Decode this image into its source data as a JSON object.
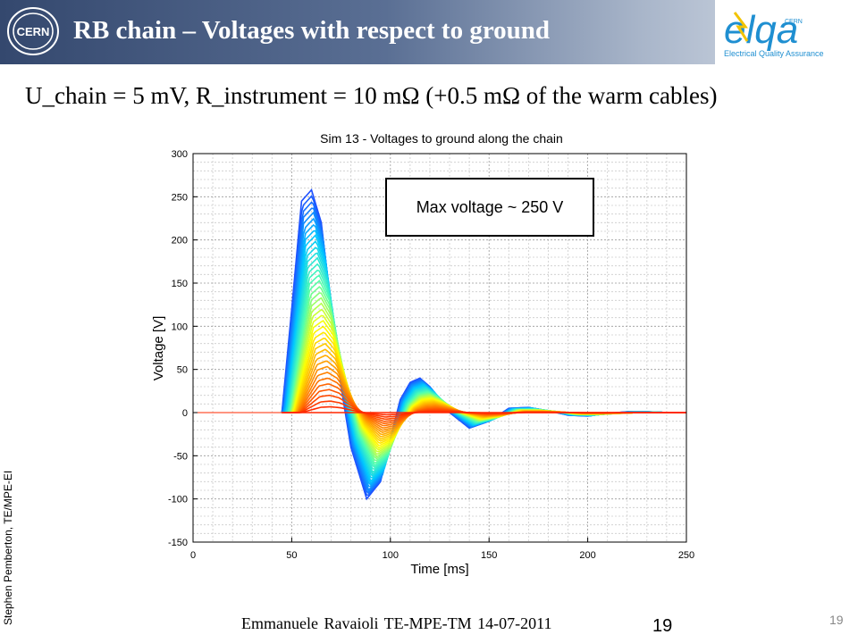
{
  "header": {
    "title": "RB chain – Voltages with respect to ground",
    "left_logo_text": "CERN",
    "right_logo_text": "elqa",
    "right_logo_caption": "Electrical Quality Assurance",
    "right_logo_small": "CERN"
  },
  "subtitle": "U_chain = 5 mV, R_instrument = 10 mΩ (+0.5 mΩ of the warm cables)",
  "chart_data": {
    "type": "line",
    "title": "Sim 13 - Voltages to ground along the chain",
    "xlabel": "Time [ms]",
    "ylabel": "Voltage [V]",
    "xlim": [
      0,
      250
    ],
    "ylim": [
      -150,
      300
    ],
    "xticks": [
      "0",
      "50",
      "100",
      "150",
      "200",
      "250"
    ],
    "yticks": [
      "-150",
      "-100",
      "-50",
      "0",
      "50",
      "100",
      "150",
      "200",
      "250",
      "300"
    ],
    "grid": true,
    "annotation": "Max voltage ~ 250 V",
    "colormap": [
      "#1e50ff",
      "#00c8ff",
      "#50ffb0",
      "#ffff00",
      "#ff8c00",
      "#ff1e00"
    ],
    "series": [
      {
        "x": [
          45,
          50,
          55,
          60,
          65,
          70,
          75,
          80,
          88,
          95,
          100,
          105,
          110,
          115,
          120,
          125,
          130,
          140,
          150,
          160,
          170,
          180,
          190,
          200,
          210,
          220,
          230,
          240,
          250
        ],
        "y": [
          0,
          120,
          245,
          258,
          220,
          120,
          30,
          -40,
          -100,
          -80,
          -30,
          15,
          35,
          40,
          30,
          15,
          0,
          -18,
          -10,
          5,
          6,
          2,
          -3,
          -4,
          -1,
          1,
          1,
          0,
          0
        ]
      },
      {
        "x": [
          45,
          50,
          55,
          60,
          65,
          70,
          75,
          80,
          88,
          95,
          100,
          105,
          110,
          115,
          120,
          125,
          130,
          140,
          150,
          160,
          170,
          180,
          190,
          200,
          210,
          220,
          230,
          240,
          250
        ],
        "y": [
          0,
          60,
          120,
          130,
          110,
          60,
          15,
          -20,
          -50,
          -40,
          -15,
          8,
          18,
          20,
          15,
          8,
          0,
          -9,
          -5,
          3,
          3,
          1,
          -2,
          -2,
          -1,
          0,
          0,
          0,
          0
        ]
      },
      {
        "x": [
          45,
          50,
          55,
          60,
          65,
          70,
          75,
          80,
          88,
          95,
          100,
          105,
          110,
          115,
          120,
          125,
          130,
          140,
          150,
          160,
          170,
          180,
          190,
          200,
          210,
          220,
          230,
          240,
          250
        ],
        "y": [
          0,
          0,
          0,
          0,
          0,
          0,
          0,
          0,
          0,
          0,
          0,
          0,
          0,
          0,
          0,
          0,
          0,
          0,
          0,
          0,
          0,
          0,
          0,
          0,
          0,
          0,
          0,
          0,
          0
        ]
      }
    ]
  },
  "footer": {
    "author": "Emmanuele Ravaioli",
    "group": "TE-MPE-TM",
    "date": "14-07-2011",
    "page_big": "19",
    "page_small": "19",
    "side_note": "Stephen Pemberton, TE/MPE-EI"
  }
}
